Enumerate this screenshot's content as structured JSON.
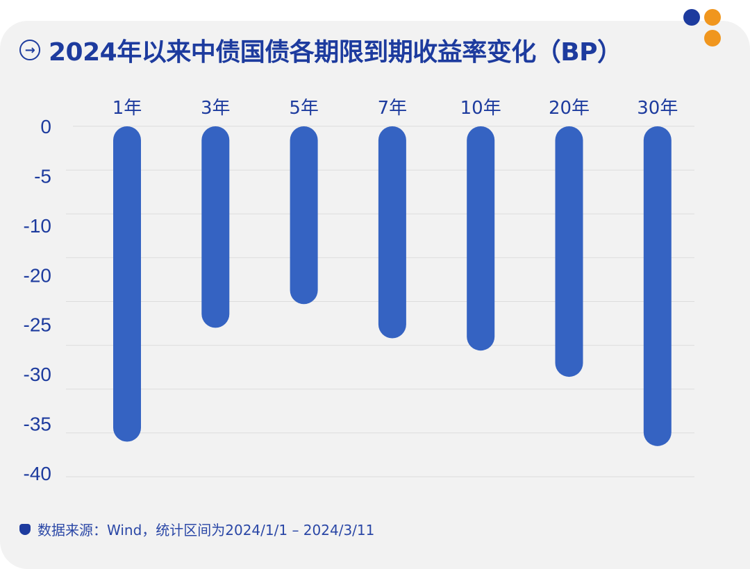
{
  "title": "2024年以来中债国债各期限到期收益率变化（BP）",
  "footer": "数据来源：Wind，统计区间为2024/1/1 – 2024/3/11",
  "colors": {
    "bar": "#3563c2",
    "text": "#1d3b9e",
    "dot_blue": "#1d3b9e",
    "dot_orange": "#f0961e"
  },
  "chart_data": {
    "type": "bar",
    "categories": [
      "1年",
      "3年",
      "5年",
      "7年",
      "10年",
      "20年",
      "30年"
    ],
    "values": [
      -36,
      -23,
      -20.3,
      -24.2,
      -25.6,
      -28.6,
      -36.5
    ],
    "ylim": [
      -40,
      0
    ],
    "y_tick_labels": [
      "0",
      "-5",
      "-10",
      "-20",
      "-25",
      "-30",
      "-35",
      "-40"
    ],
    "grid": true,
    "unit": "BP"
  }
}
